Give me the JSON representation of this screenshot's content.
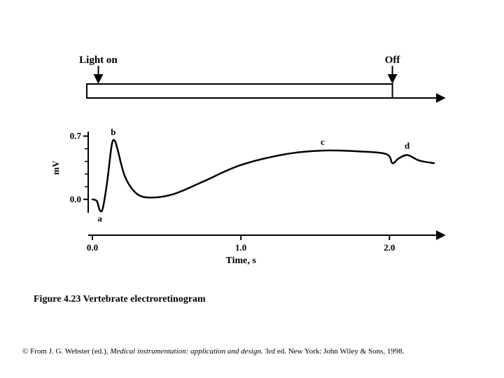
{
  "figure": {
    "background_color": "#ffffff",
    "stroke_color": "#000000",
    "line_width_axis": 2,
    "line_width_curve": 2.5,
    "font_family": "Times New Roman",
    "stimulus": {
      "label_on": "Light on",
      "label_off": "Off",
      "label_fontsize": 15,
      "label_fontweight": "bold",
      "arrow_on_x": 0.04,
      "arrow_off_x": 2.02,
      "bar_y_from_top": 0
    },
    "y_axis": {
      "label": "mV",
      "label_fontsize": 13,
      "label_fontweight": "bold",
      "ticks": [
        0.0,
        0.7
      ],
      "tick_labels": [
        "0.0",
        "0.7"
      ],
      "tick_fontsize": 13,
      "tick_fontweight": "bold"
    },
    "x_axis": {
      "label": "Time, s",
      "label_fontsize": 14,
      "label_fontweight": "bold",
      "ticks": [
        0.0,
        1.0,
        2.0
      ],
      "tick_labels": [
        "0.0",
        "1.0",
        "2.0"
      ],
      "tick_fontsize": 13,
      "tick_fontweight": "bold",
      "xlim": [
        0.0,
        2.3
      ]
    },
    "curve": {
      "type": "line",
      "description": "Vertebrate ERG waveform a-b-c-d",
      "points_xy": [
        [
          0.0,
          0.0
        ],
        [
          0.03,
          -0.02
        ],
        [
          0.05,
          -0.12
        ],
        [
          0.07,
          -0.1
        ],
        [
          0.1,
          0.2
        ],
        [
          0.13,
          0.6
        ],
        [
          0.15,
          0.65
        ],
        [
          0.17,
          0.55
        ],
        [
          0.22,
          0.25
        ],
        [
          0.3,
          0.06
        ],
        [
          0.4,
          0.02
        ],
        [
          0.55,
          0.06
        ],
        [
          0.75,
          0.2
        ],
        [
          1.0,
          0.38
        ],
        [
          1.3,
          0.5
        ],
        [
          1.55,
          0.54
        ],
        [
          1.8,
          0.53
        ],
        [
          1.98,
          0.5
        ],
        [
          2.02,
          0.4
        ],
        [
          2.06,
          0.45
        ],
        [
          2.12,
          0.49
        ],
        [
          2.2,
          0.43
        ],
        [
          2.3,
          0.4
        ]
      ],
      "markers": [
        {
          "label": "a",
          "x": 0.06,
          "y": -0.12,
          "dx": -2,
          "dy": 16
        },
        {
          "label": "b",
          "x": 0.15,
          "y": 0.65,
          "dx": -2,
          "dy": -8
        },
        {
          "label": "c",
          "x": 1.55,
          "y": 0.54,
          "dx": 0,
          "dy": -8
        },
        {
          "label": "d",
          "x": 2.1,
          "y": 0.5,
          "dx": 4,
          "dy": -8
        }
      ],
      "marker_fontsize": 13,
      "marker_fontweight": "bold"
    },
    "caption": "Figure 4.23  Vertebrate electroretinogram",
    "caption_fontsize": 14,
    "credit": {
      "prefix": "© From J. G. Webster (ed.), ",
      "title_italic": "Medical instrumentation: application and design",
      "suffix": ". 3rd ed. New York: John Wiley & Sons, 1998.",
      "fontsize": 11
    }
  }
}
